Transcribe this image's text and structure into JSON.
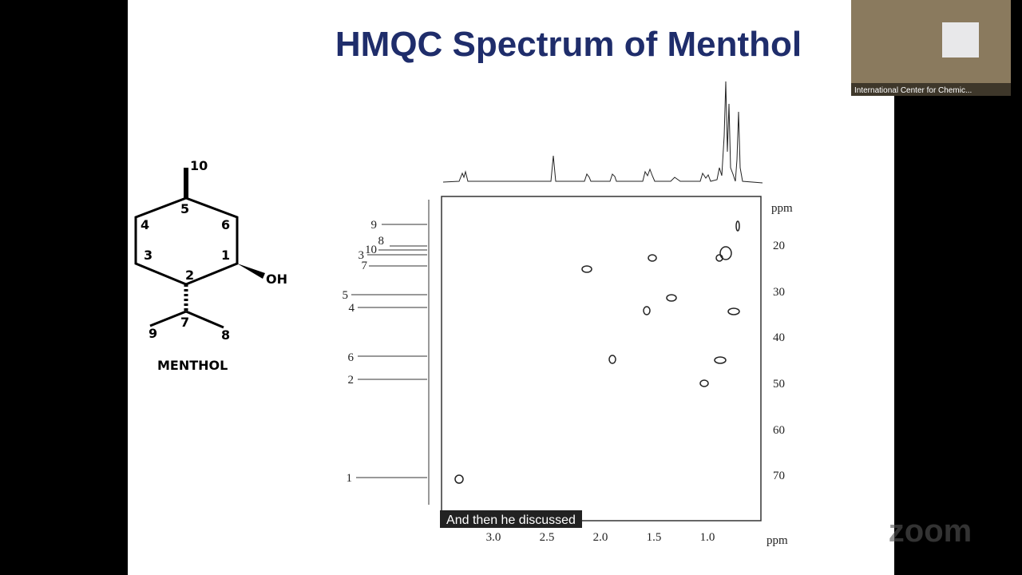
{
  "slide": {
    "title": "HMQC Spectrum of Menthol",
    "molecule": {
      "atoms": [
        "10",
        "5",
        "4",
        "6",
        "3",
        "1",
        "2",
        "OH",
        "9",
        "7",
        "8"
      ],
      "name": "MENTHOL"
    },
    "spectrum": {
      "carbon_labels": [
        "9",
        "8",
        "10",
        "3",
        "7",
        "5",
        "4",
        "6",
        "2",
        "1"
      ],
      "y_axis_unit": "ppm",
      "y_ticks": [
        "20",
        "30",
        "40",
        "50",
        "60",
        "70"
      ],
      "x_ticks": [
        "3.0",
        "2.5",
        "2.0",
        "1.5",
        "1.0"
      ],
      "x_axis_unit": "ppm"
    }
  },
  "caption": "And then he discussed",
  "video_tile": {
    "label": "International Center for Chemic..."
  },
  "watermark": "zoom"
}
